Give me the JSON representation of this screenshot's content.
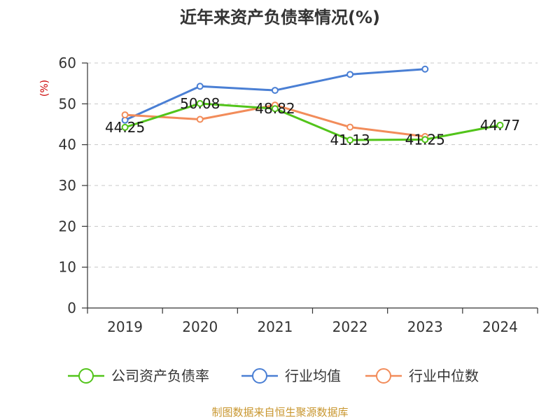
{
  "chart_data": {
    "type": "line",
    "title": "近年来资产负债率情况(%)",
    "ylabel": "(%)",
    "categories": [
      "2019",
      "2020",
      "2021",
      "2022",
      "2023",
      "2024"
    ],
    "ylim": [
      0,
      60
    ],
    "yticks": [
      0,
      10,
      20,
      30,
      40,
      50,
      60
    ],
    "grid": true,
    "legend": "bottom",
    "series": [
      {
        "name": "公司资产负债率",
        "color": "#52c41a",
        "show_labels": true,
        "values": [
          44.25,
          50.08,
          48.82,
          41.13,
          41.25,
          44.77
        ]
      },
      {
        "name": "行业均值",
        "color": "#4a7fd4",
        "show_labels": false,
        "values": [
          46.0,
          54.3,
          53.3,
          57.2,
          58.5,
          null
        ]
      },
      {
        "name": "行业中位数",
        "color": "#f28c5a",
        "show_labels": false,
        "values": [
          47.3,
          46.2,
          49.7,
          44.3,
          42.0,
          null
        ]
      }
    ],
    "source": "制图数据来自恒生聚源数据库"
  }
}
